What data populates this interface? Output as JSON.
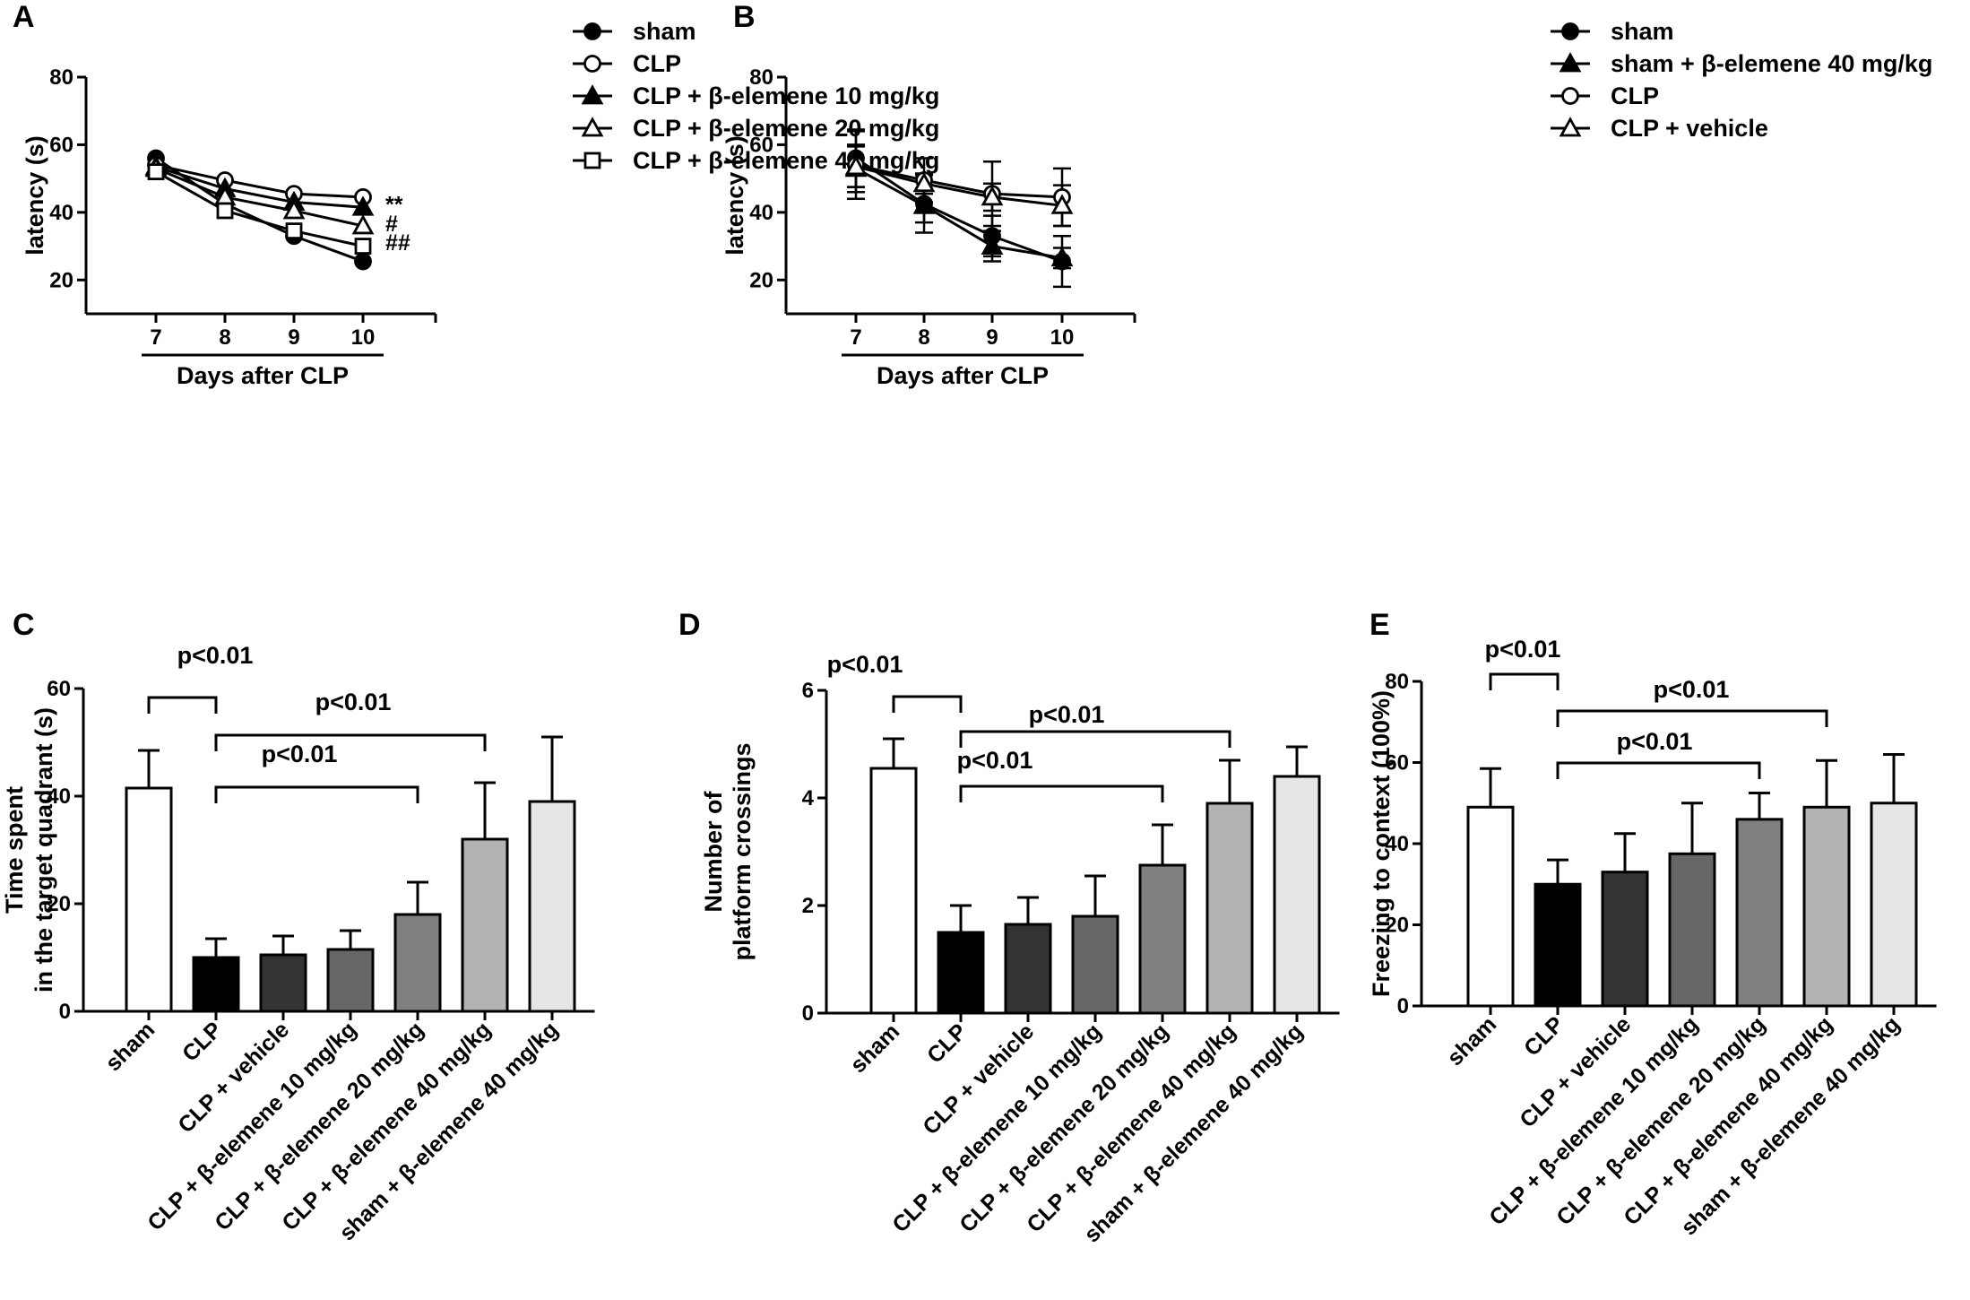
{
  "chart_data": [
    {
      "id": "A",
      "type": "line",
      "panel_label": "A",
      "xlabel": "Days after CLP",
      "ylabel": "latency (s)",
      "x": [
        7,
        8,
        9,
        10
      ],
      "yticks": [
        20,
        40,
        60,
        80
      ],
      "ylim": [
        10,
        80
      ],
      "series": [
        {
          "name": "sham",
          "marker": "circle-filled",
          "values": [
            56,
            42.5,
            33,
            25.5
          ]
        },
        {
          "name": "CLP",
          "marker": "circle-open",
          "values": [
            54,
            49.5,
            45.5,
            44.5
          ]
        },
        {
          "name": "CLP + β-elemene 10 mg/kg",
          "marker": "triangle-filled",
          "values": [
            53.5,
            47,
            43,
            41.5
          ]
        },
        {
          "name": "CLP + β-elemene 20 mg/kg",
          "marker": "triangle-open",
          "values": [
            53,
            44.5,
            40.5,
            36
          ]
        },
        {
          "name": "CLP + β-elemene 40 mg/kg",
          "marker": "square-open",
          "values": [
            52,
            40.5,
            34.5,
            30
          ]
        }
      ],
      "annotations": [
        "**",
        "#",
        "##"
      ]
    },
    {
      "id": "B",
      "type": "line",
      "panel_label": "B",
      "xlabel": "Days after CLP",
      "ylabel": "latency (s)",
      "x": [
        7,
        8,
        9,
        10
      ],
      "yticks": [
        20,
        40,
        60,
        80
      ],
      "ylim": [
        10,
        80
      ],
      "series": [
        {
          "name": "sham",
          "marker": "circle-filled",
          "values": [
            56,
            42.5,
            33,
            25.5
          ],
          "errors": [
            8.5,
            8.5,
            6,
            7.5
          ]
        },
        {
          "name": "sham + β-elemene 40 mg/kg",
          "marker": "triangle-filled",
          "values": [
            53,
            42,
            30,
            26.5
          ],
          "errors": [
            7,
            5,
            4.5,
            3
          ]
        },
        {
          "name": "CLP",
          "marker": "circle-open",
          "values": [
            54,
            49.5,
            45.5,
            44.5
          ],
          "errors": [
            10,
            6.5,
            9.5,
            8.5
          ]
        },
        {
          "name": "CLP + vehicle",
          "marker": "triangle-open",
          "values": [
            53.5,
            48.5,
            44.5,
            42
          ],
          "errors": [
            6,
            3,
            4,
            6
          ]
        }
      ]
    },
    {
      "id": "C",
      "type": "bar",
      "panel_label": "C",
      "ylabel_lines": [
        "Time spent",
        "in the  target quadrant (s)"
      ],
      "categories": [
        "sham",
        "CLP",
        "CLP + vehicle",
        "CLP + β-elemene 10 mg/kg",
        "CLP + β-elemene 20 mg/kg",
        "CLP + β-elemene 40 mg/kg",
        "sham + β-elemene 40 mg/kg"
      ],
      "values": [
        41.5,
        10,
        10.5,
        11.5,
        18,
        32,
        39
      ],
      "errors": [
        7,
        3.5,
        3.5,
        3.5,
        6,
        10.5,
        12
      ],
      "colors": [
        "#ffffff",
        "#000000",
        "#333333",
        "#666666",
        "#808080",
        "#b3b3b3",
        "#e6e6e6"
      ],
      "yticks": [
        0,
        20,
        40,
        60
      ],
      "ylim": [
        0,
        60
      ],
      "comparisons": [
        {
          "from": 0,
          "to": 1,
          "label": "p<0.01"
        },
        {
          "from": 1,
          "to": 5,
          "label": "p<0.01"
        },
        {
          "from": 1,
          "to": 4,
          "label": "p<0.01"
        }
      ]
    },
    {
      "id": "D",
      "type": "bar",
      "panel_label": "D",
      "ylabel_lines": [
        "Number of",
        "platform crossings"
      ],
      "categories": [
        "sham",
        "CLP",
        "CLP + vehicle",
        "CLP + β-elemene 10 mg/kg",
        "CLP + β-elemene 20 mg/kg",
        "CLP + β-elemene 40 mg/kg",
        "sham + β-elemene 40 mg/kg"
      ],
      "values": [
        4.55,
        1.5,
        1.65,
        1.8,
        2.75,
        3.9,
        4.4
      ],
      "errors": [
        0.55,
        0.5,
        0.5,
        0.75,
        0.75,
        0.8,
        0.55
      ],
      "colors": [
        "#ffffff",
        "#000000",
        "#333333",
        "#666666",
        "#808080",
        "#b3b3b3",
        "#e6e6e6"
      ],
      "yticks": [
        0,
        2,
        4,
        6
      ],
      "ylim": [
        0,
        6
      ],
      "comparisons": [
        {
          "from": 0,
          "to": 1,
          "label": "p<0.01"
        },
        {
          "from": 1,
          "to": 5,
          "label": "p<0.01"
        },
        {
          "from": 1,
          "to": 4,
          "label": "p<0.01"
        }
      ]
    },
    {
      "id": "E",
      "type": "bar",
      "panel_label": "E",
      "ylabel_lines": [
        "Freezing to context (100%)"
      ],
      "categories": [
        "sham",
        "CLP",
        "CLP + vehicle",
        "CLP + β-elemene 10 mg/kg",
        "CLP + β-elemene 20 mg/kg",
        "CLP + β-elemene 40 mg/kg",
        "sham + β-elemene 40 mg/kg"
      ],
      "values": [
        49,
        30,
        33,
        37.5,
        46,
        49,
        50
      ],
      "errors": [
        9.5,
        6,
        9.5,
        12.5,
        6.5,
        11.5,
        12
      ],
      "colors": [
        "#ffffff",
        "#000000",
        "#333333",
        "#666666",
        "#808080",
        "#b3b3b3",
        "#e6e6e6"
      ],
      "yticks": [
        0,
        20,
        40,
        60,
        80
      ],
      "ylim": [
        0,
        80
      ],
      "comparisons": [
        {
          "from": 0,
          "to": 1,
          "label": "p<0.01"
        },
        {
          "from": 1,
          "to": 5,
          "label": "p<0.01"
        },
        {
          "from": 1,
          "to": 4,
          "label": "p<0.01"
        }
      ]
    }
  ]
}
